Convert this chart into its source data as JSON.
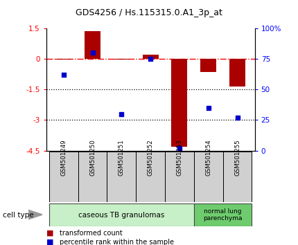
{
  "title": "GDS4256 / Hs.115315.0.A1_3p_at",
  "samples": [
    "GSM501249",
    "GSM501250",
    "GSM501251",
    "GSM501252",
    "GSM501253",
    "GSM501254",
    "GSM501255"
  ],
  "transformed_count": [
    -0.03,
    1.35,
    -0.05,
    0.2,
    -4.3,
    -0.65,
    -1.35
  ],
  "percentile_rank": [
    62,
    80,
    30,
    75,
    2,
    35,
    27
  ],
  "ylim_left": [
    -4.5,
    1.5
  ],
  "ylim_right": [
    0,
    100
  ],
  "yticks_left": [
    1.5,
    0,
    -1.5,
    -3,
    -4.5
  ],
  "yticks_right": [
    100,
    75,
    50,
    25,
    0
  ],
  "ytick_labels_left": [
    "1.5",
    "0",
    "-1.5",
    "-3",
    "-4.5"
  ],
  "ytick_labels_right": [
    "100%",
    "75",
    "50",
    "25",
    "0"
  ],
  "hline_y": 0,
  "dotted_lines": [
    -1.5,
    -3
  ],
  "bar_color": "#aa0000",
  "dot_color": "#0000cc",
  "group1_label": "caseous TB granulomas",
  "group2_label": "normal lung\nparenchyma",
  "group1_color": "#c8f0c8",
  "group2_color": "#6ecc6e",
  "sample_box_color": "#d0d0d0",
  "cell_type_label": "cell type",
  "legend_bar_label": "transformed count",
  "legend_dot_label": "percentile rank within the sample",
  "bar_width": 0.55,
  "title_fontsize": 9
}
